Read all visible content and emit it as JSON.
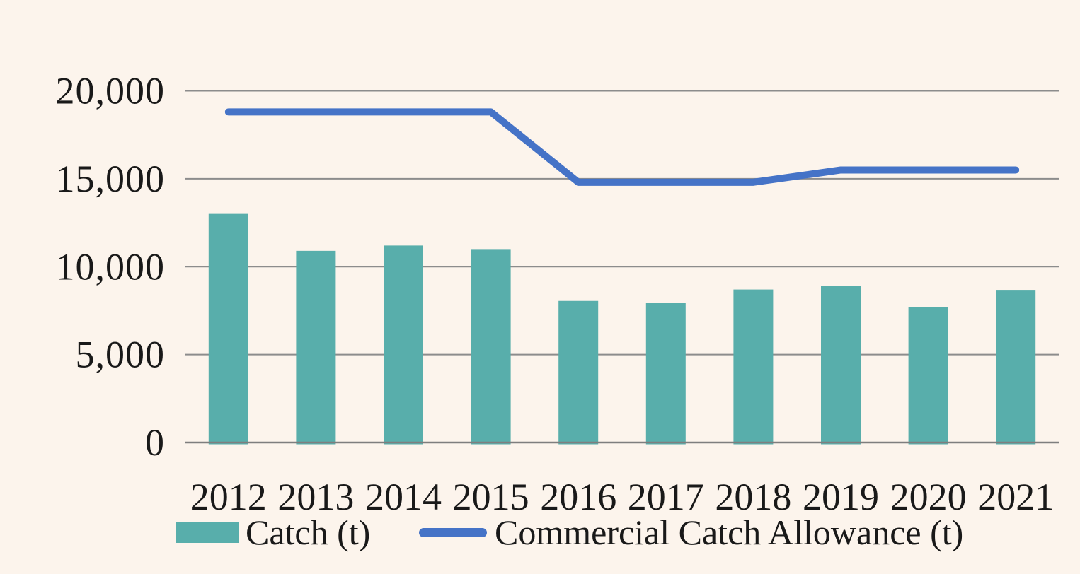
{
  "chart_data": {
    "type": "bar",
    "subtype": "bar-and-line-combo",
    "categories": [
      "2012",
      "2013",
      "2014",
      "2015",
      "2016",
      "2017",
      "2018",
      "2019",
      "2020",
      "2021"
    ],
    "series": [
      {
        "name": "Catch (t)",
        "type": "bar",
        "color": "#58AEAB",
        "values": [
          13000,
          10900,
          11200,
          11000,
          8050,
          7950,
          8700,
          8900,
          7700,
          8680
        ]
      },
      {
        "name": "Commercial Catch Allowance (t)",
        "type": "line",
        "color": "#4573C7",
        "values": [
          18800,
          18800,
          18800,
          18800,
          14800,
          14800,
          14800,
          15500,
          15500,
          15500
        ]
      }
    ],
    "title": "",
    "xlabel": "",
    "ylabel": "",
    "ylim": [
      0,
      20000
    ],
    "yticks": [
      0,
      5000,
      10000,
      15000,
      20000
    ],
    "ytick_labels": [
      "0",
      "5,000",
      "10,000",
      "15,000",
      "20,000"
    ],
    "grid": true,
    "legend_position": "bottom"
  },
  "colors": {
    "background": "#FCF4EC",
    "gridline": "#8C8C8C",
    "axis_line": "#7E7E7E",
    "text": "#191919"
  }
}
